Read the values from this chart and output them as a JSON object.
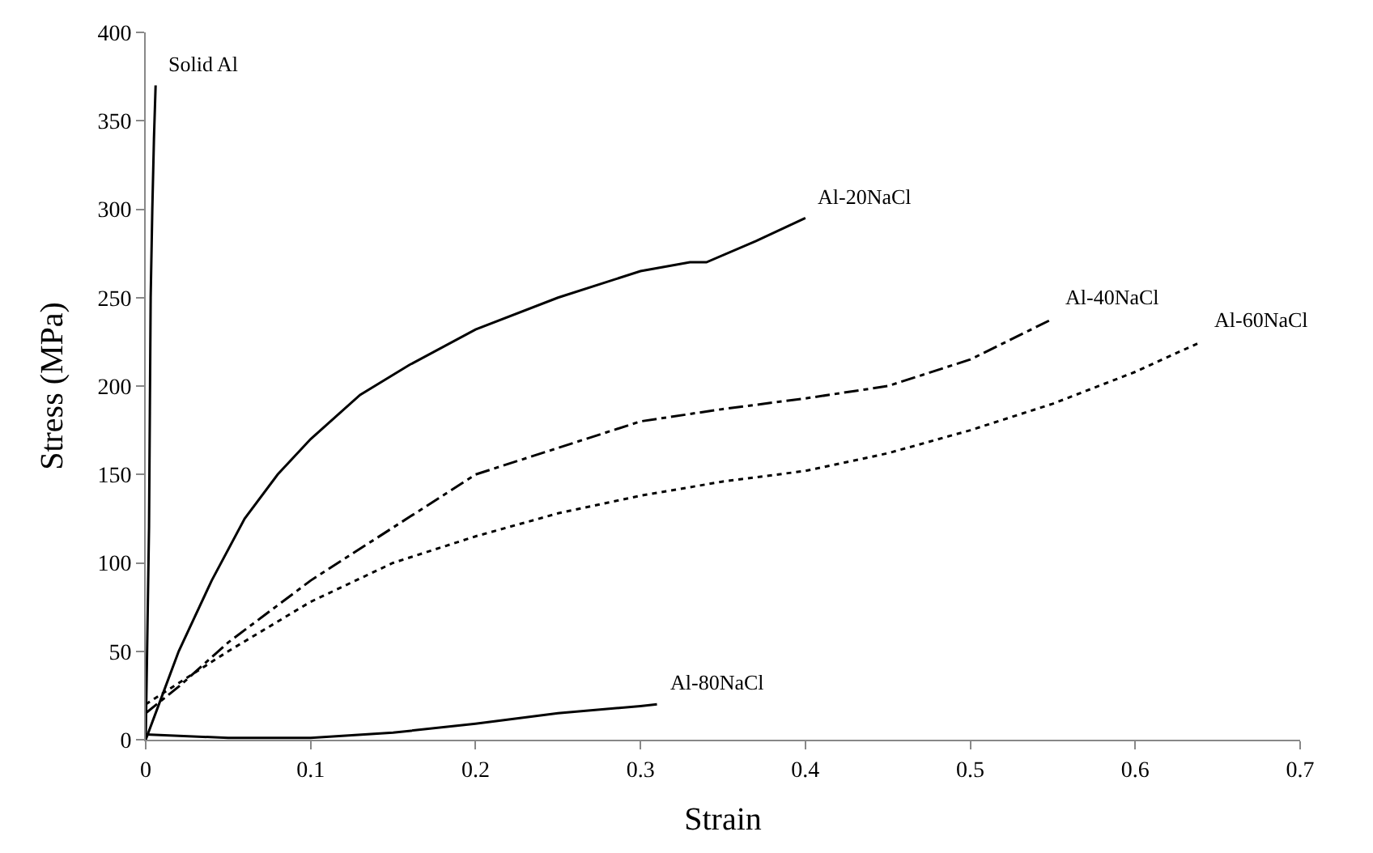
{
  "chart_data": {
    "type": "line",
    "xlabel": "Strain",
    "ylabel": "Stress (MPa)",
    "xlim": [
      0,
      0.7
    ],
    "xticks": [
      0,
      0.1,
      0.2,
      0.3,
      0.4,
      0.5,
      0.6,
      0.7
    ],
    "ylim": [
      0,
      400
    ],
    "yticks": [
      0,
      50,
      100,
      150,
      200,
      250,
      300,
      350,
      400
    ],
    "legend": false,
    "marker": "none",
    "series": [
      {
        "name": "Solid Al",
        "color": "#000000",
        "line_style": "solid",
        "x": [
          0,
          0.002,
          0.003,
          0.004,
          0.005,
          0.006
        ],
        "values": [
          0,
          120,
          250,
          300,
          340,
          370
        ]
      },
      {
        "name": "Al-20NaCl",
        "color": "#000000",
        "line_style": "solid",
        "x": [
          0,
          0.01,
          0.02,
          0.04,
          0.06,
          0.08,
          0.1,
          0.13,
          0.16,
          0.2,
          0.25,
          0.3,
          0.33,
          0.34,
          0.37,
          0.4
        ],
        "values": [
          0,
          25,
          50,
          90,
          125,
          150,
          170,
          195,
          212,
          232,
          250,
          265,
          270,
          270,
          282,
          295
        ]
      },
      {
        "name": "Al-40NaCl",
        "color": "#000000",
        "line_style": "dashdot",
        "x": [
          0,
          0.02,
          0.05,
          0.1,
          0.15,
          0.2,
          0.25,
          0.3,
          0.35,
          0.4,
          0.45,
          0.5,
          0.55
        ],
        "values": [
          15,
          30,
          55,
          90,
          120,
          150,
          165,
          180,
          187,
          193,
          200,
          215,
          238
        ]
      },
      {
        "name": "Al-60NaCl",
        "color": "#000000",
        "line_style": "dotted",
        "x": [
          0,
          0.02,
          0.05,
          0.1,
          0.15,
          0.2,
          0.25,
          0.3,
          0.35,
          0.4,
          0.45,
          0.5,
          0.55,
          0.6,
          0.64
        ],
        "values": [
          20,
          32,
          50,
          78,
          100,
          115,
          128,
          138,
          146,
          152,
          162,
          175,
          190,
          208,
          225
        ]
      },
      {
        "name": "Al-80NaCl",
        "color": "#000000",
        "line_style": "solid",
        "x": [
          0,
          0.05,
          0.1,
          0.15,
          0.2,
          0.25,
          0.3,
          0.31
        ],
        "values": [
          3,
          1,
          1,
          4,
          9,
          15,
          19,
          20
        ]
      }
    ]
  }
}
